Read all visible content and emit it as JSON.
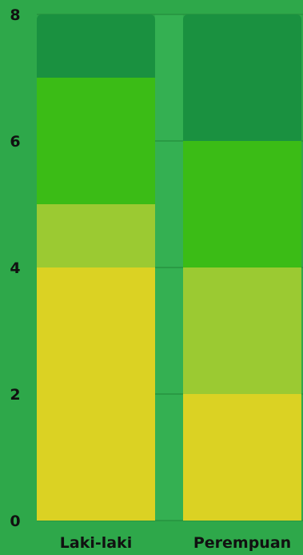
{
  "chart_data": {
    "type": "bar",
    "stacked": true,
    "categories": [
      "Laki-laki",
      "Perempuan"
    ],
    "series": [
      {
        "values": [
          4,
          2
        ],
        "color": "#dbd223"
      },
      {
        "values": [
          1,
          2
        ],
        "color": "#9bca32"
      },
      {
        "values": [
          2,
          2
        ],
        "color": "#3bbc16"
      },
      {
        "values": [
          1,
          2
        ],
        "color": "#1a9140"
      }
    ],
    "y_ticks": [
      "0",
      "2",
      "4",
      "6",
      "8"
    ],
    "ylim": [
      0,
      8
    ],
    "grid": true,
    "legend": "none",
    "xlabel": "",
    "ylabel": "",
    "title": ""
  },
  "colors": {
    "background": "#2ea84a",
    "gridline": "#27923f",
    "gap_band": "#34b052"
  }
}
